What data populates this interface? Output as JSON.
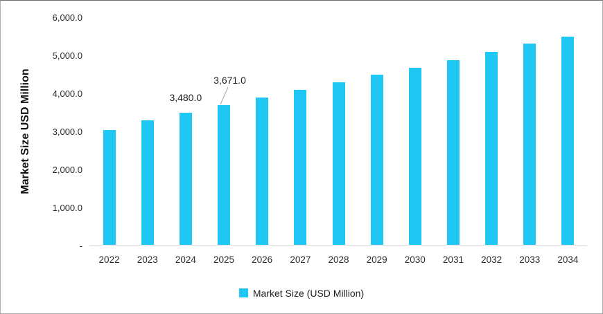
{
  "chart_data": {
    "type": "bar",
    "title": "",
    "xlabel": "",
    "ylabel": "Market Size USD Million",
    "categories": [
      "2022",
      "2023",
      "2024",
      "2025",
      "2026",
      "2027",
      "2028",
      "2029",
      "2030",
      "2031",
      "2032",
      "2033",
      "2034"
    ],
    "series": [
      {
        "name": "Market Size (USD Million)",
        "values": [
          3030,
          3280,
          3480,
          3671,
          3880,
          4080,
          4280,
          4475,
          4670,
          4865,
          5090,
          5295,
          5490
        ]
      }
    ],
    "ylim": [
      0,
      6000
    ],
    "y_ticks": [
      {
        "value": 6000,
        "label": "6,000.0"
      },
      {
        "value": 5000,
        "label": "5,000.0"
      },
      {
        "value": 4000,
        "label": "4,000.0"
      },
      {
        "value": 3000,
        "label": "3,000.0"
      },
      {
        "value": 2000,
        "label": "2,000.0"
      },
      {
        "value": 1000,
        "label": "1,000.0"
      },
      {
        "value": 0,
        "label": "-"
      }
    ],
    "grid": false,
    "data_labels": [
      {
        "category": "2024",
        "text": "3,480.0",
        "leader_line": false
      },
      {
        "category": "2025",
        "text": "3,671.0",
        "leader_line": true
      }
    ],
    "legend": {
      "position": "bottom",
      "items": [
        {
          "label": "Market Size (USD Million)",
          "color": "#1ec7f4"
        }
      ]
    },
    "colors": {
      "bar": "#1ec7f4",
      "axis_line": "#d9d9d9",
      "leader_line": "#a6a6a6"
    }
  }
}
